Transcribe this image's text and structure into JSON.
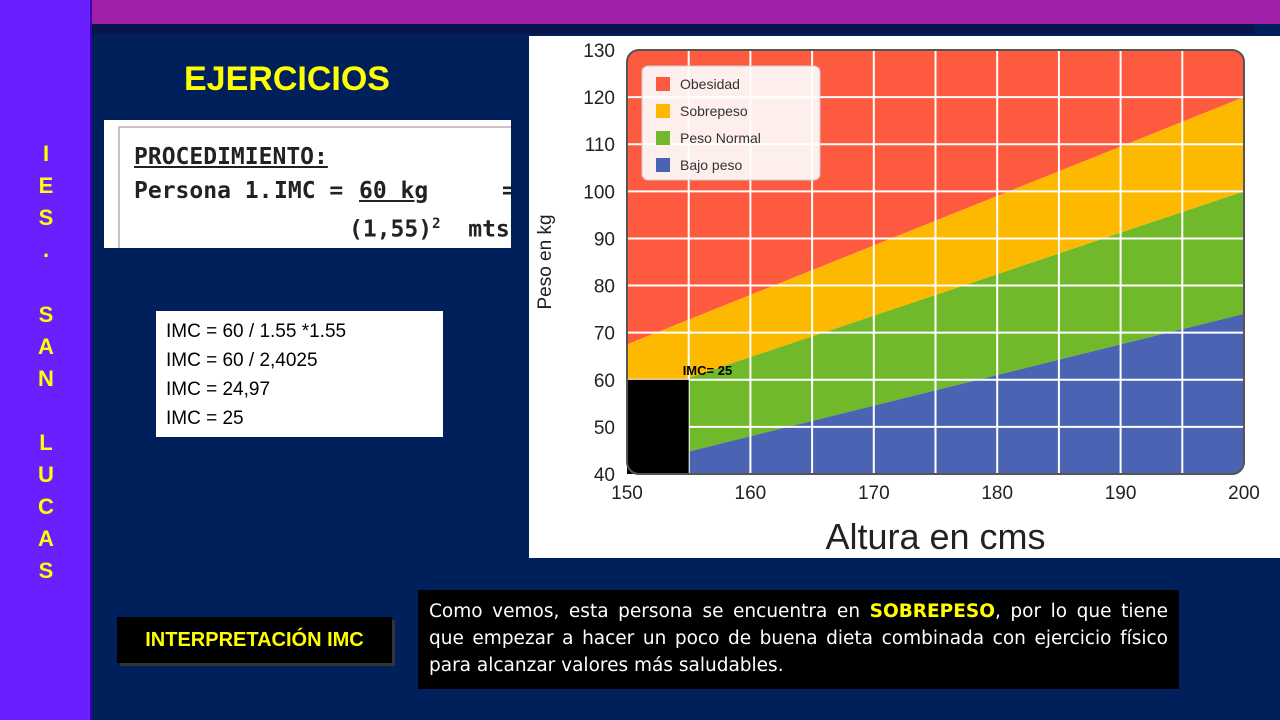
{
  "sidebar": {
    "letters": [
      "I",
      "E",
      "S",
      ".",
      "S",
      "A",
      "N",
      "L",
      "U",
      "C",
      "A",
      "S"
    ]
  },
  "title": "EJERCICIOS",
  "procedure": {
    "heading": "PROCEDIMIENTO:",
    "persona": "Persona 1.",
    "imc_label": "IMC =",
    "numerator": "60 kg",
    "equals": "=",
    "denominator_base": "(1,55)",
    "denominator_exp": "2",
    "denominator_unit": "mts"
  },
  "calculation": [
    "IMC = 60 / 1.55 *1.55",
    "IMC = 60 / 2,4025",
    "IMC = 24,97",
    "IMC = 25"
  ],
  "interpretation": {
    "label": "INTERPRETACIÓN IMC",
    "text_before": "Como vemos, esta persona se encuentra en ",
    "highlight": "SOBREPESO",
    "text_after": ", por lo que tiene que empezar a hacer un poco de buena dieta combinada con ejercicio físico para alcanzar valores más saludables."
  },
  "chart_data": {
    "type": "area",
    "title": "",
    "xlabel": "Altura en cms",
    "ylabel": "Peso en kg",
    "xlim": [
      150,
      200
    ],
    "ylim": [
      40,
      130
    ],
    "xticks": [
      150,
      160,
      170,
      180,
      190,
      200
    ],
    "yticks": [
      40,
      50,
      60,
      70,
      80,
      90,
      100,
      110,
      120,
      130
    ],
    "grid": true,
    "legend_position": "top-left",
    "series": [
      {
        "name": "Obesidad",
        "color": "#fe5a40",
        "lower": [
          [
            150,
            67.5
          ],
          [
            200,
            120
          ]
        ],
        "upper": [
          [
            150,
            130
          ],
          [
            200,
            130
          ]
        ]
      },
      {
        "name": "Sobrepeso",
        "color": "#fdb900",
        "lower": [
          [
            150,
            56
          ],
          [
            200,
            100
          ]
        ],
        "upper": [
          [
            150,
            67.5
          ],
          [
            200,
            120
          ]
        ]
      },
      {
        "name": "Peso Normal",
        "color": "#6fb92a",
        "lower": [
          [
            150,
            41.5
          ],
          [
            200,
            74
          ]
        ],
        "upper": [
          [
            150,
            56
          ],
          [
            200,
            100
          ]
        ]
      },
      {
        "name": "Bajo peso",
        "color": "#4a64b3",
        "lower": [
          [
            150,
            40
          ],
          [
            200,
            40
          ]
        ],
        "upper": [
          [
            150,
            41.5
          ],
          [
            200,
            74
          ]
        ]
      }
    ],
    "annotation": {
      "text": "IMC= 25",
      "x": 155,
      "y": 60
    },
    "marker": {
      "x_range": [
        150,
        155
      ],
      "y_range": [
        40,
        60
      ],
      "color": "#000000"
    }
  }
}
